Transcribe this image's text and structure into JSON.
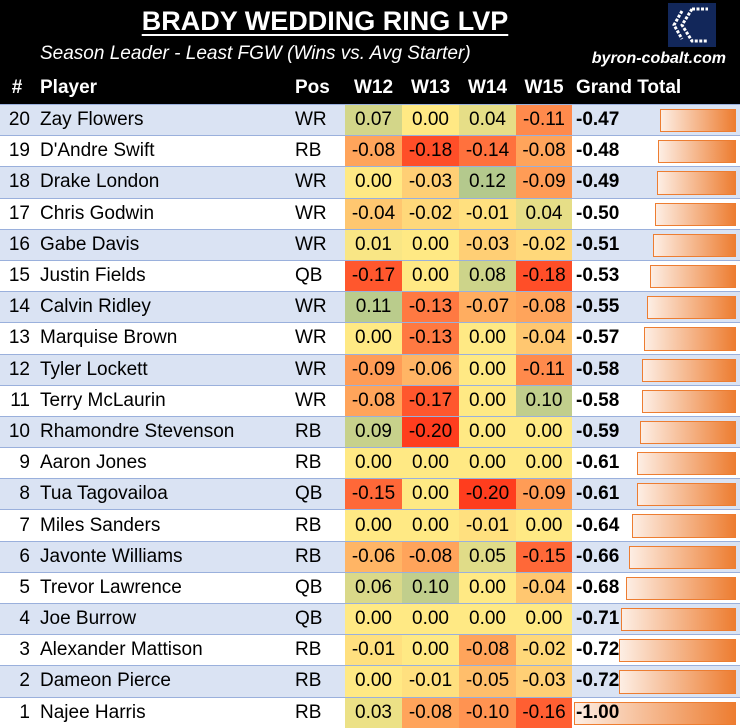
{
  "header": {
    "title": "BRADY WEDDING RING LVP",
    "subtitle": "Season Leader - Least FGW (Wins vs. Avg Starter)",
    "site": "byron-cobalt.com",
    "logo": "BC"
  },
  "chart_data": {
    "type": "table",
    "columns": [
      "#",
      "Player",
      "Pos",
      "W12",
      "W13",
      "W14",
      "W15",
      "Grand Total"
    ],
    "color_scale": {
      "min_color": "#ff3d1e",
      "mid_color": "#ffe984",
      "max_color": "#b4c98d",
      "bar_color": "#ed7d31"
    },
    "rows": [
      {
        "rank": "20",
        "player": "Zay Flowers",
        "pos": "WR",
        "w": [
          "0.07",
          "0.00",
          "0.04",
          "-0.11"
        ],
        "total": "-0.47"
      },
      {
        "rank": "19",
        "player": "D'Andre Swift",
        "pos": "RB",
        "w": [
          "-0.08",
          "-0.18",
          "-0.14",
          "-0.08"
        ],
        "total": "-0.48"
      },
      {
        "rank": "18",
        "player": "Drake London",
        "pos": "WR",
        "w": [
          "0.00",
          "-0.03",
          "0.12",
          "-0.09"
        ],
        "total": "-0.49"
      },
      {
        "rank": "17",
        "player": "Chris Godwin",
        "pos": "WR",
        "w": [
          "-0.04",
          "-0.02",
          "-0.01",
          "0.04"
        ],
        "total": "-0.50"
      },
      {
        "rank": "16",
        "player": "Gabe Davis",
        "pos": "WR",
        "w": [
          "0.01",
          "0.00",
          "-0.03",
          "-0.02"
        ],
        "total": "-0.51"
      },
      {
        "rank": "15",
        "player": "Justin Fields",
        "pos": "QB",
        "w": [
          "-0.17",
          "0.00",
          "0.08",
          "-0.18"
        ],
        "total": "-0.53"
      },
      {
        "rank": "14",
        "player": "Calvin Ridley",
        "pos": "WR",
        "w": [
          "0.11",
          "-0.13",
          "-0.07",
          "-0.08"
        ],
        "total": "-0.55"
      },
      {
        "rank": "13",
        "player": "Marquise Brown",
        "pos": "WR",
        "w": [
          "0.00",
          "-0.13",
          "0.00",
          "-0.04"
        ],
        "total": "-0.57"
      },
      {
        "rank": "12",
        "player": "Tyler Lockett",
        "pos": "WR",
        "w": [
          "-0.09",
          "-0.06",
          "0.00",
          "-0.11"
        ],
        "total": "-0.58"
      },
      {
        "rank": "11",
        "player": "Terry McLaurin",
        "pos": "WR",
        "w": [
          "-0.08",
          "-0.17",
          "0.00",
          "0.10"
        ],
        "total": "-0.58"
      },
      {
        "rank": "10",
        "player": "Rhamondre Stevenson",
        "pos": "RB",
        "w": [
          "0.09",
          "-0.20",
          "0.00",
          "0.00"
        ],
        "total": "-0.59"
      },
      {
        "rank": "9",
        "player": "Aaron Jones",
        "pos": "RB",
        "w": [
          "0.00",
          "0.00",
          "0.00",
          "0.00"
        ],
        "total": "-0.61"
      },
      {
        "rank": "8",
        "player": "Tua Tagovailoa",
        "pos": "QB",
        "w": [
          "-0.15",
          "0.00",
          "-0.20",
          "-0.09"
        ],
        "total": "-0.61"
      },
      {
        "rank": "7",
        "player": "Miles Sanders",
        "pos": "RB",
        "w": [
          "0.00",
          "0.00",
          "-0.01",
          "0.00"
        ],
        "total": "-0.64"
      },
      {
        "rank": "6",
        "player": "Javonte Williams",
        "pos": "RB",
        "w": [
          "-0.06",
          "-0.08",
          "0.05",
          "-0.15"
        ],
        "total": "-0.66"
      },
      {
        "rank": "5",
        "player": "Trevor Lawrence",
        "pos": "QB",
        "w": [
          "0.06",
          "0.10",
          "0.00",
          "-0.04"
        ],
        "total": "-0.68"
      },
      {
        "rank": "4",
        "player": "Joe Burrow",
        "pos": "QB",
        "w": [
          "0.00",
          "0.00",
          "0.00",
          "0.00"
        ],
        "total": "-0.71"
      },
      {
        "rank": "3",
        "player": "Alexander Mattison",
        "pos": "RB",
        "w": [
          "-0.01",
          "0.00",
          "-0.08",
          "-0.02"
        ],
        "total": "-0.72"
      },
      {
        "rank": "2",
        "player": "Dameon Pierce",
        "pos": "RB",
        "w": [
          "0.00",
          "-0.01",
          "-0.05",
          "-0.03"
        ],
        "total": "-0.72"
      },
      {
        "rank": "1",
        "player": "Najee Harris",
        "pos": "RB",
        "w": [
          "0.03",
          "-0.08",
          "-0.10",
          "-0.16"
        ],
        "total": "-1.00"
      }
    ]
  }
}
